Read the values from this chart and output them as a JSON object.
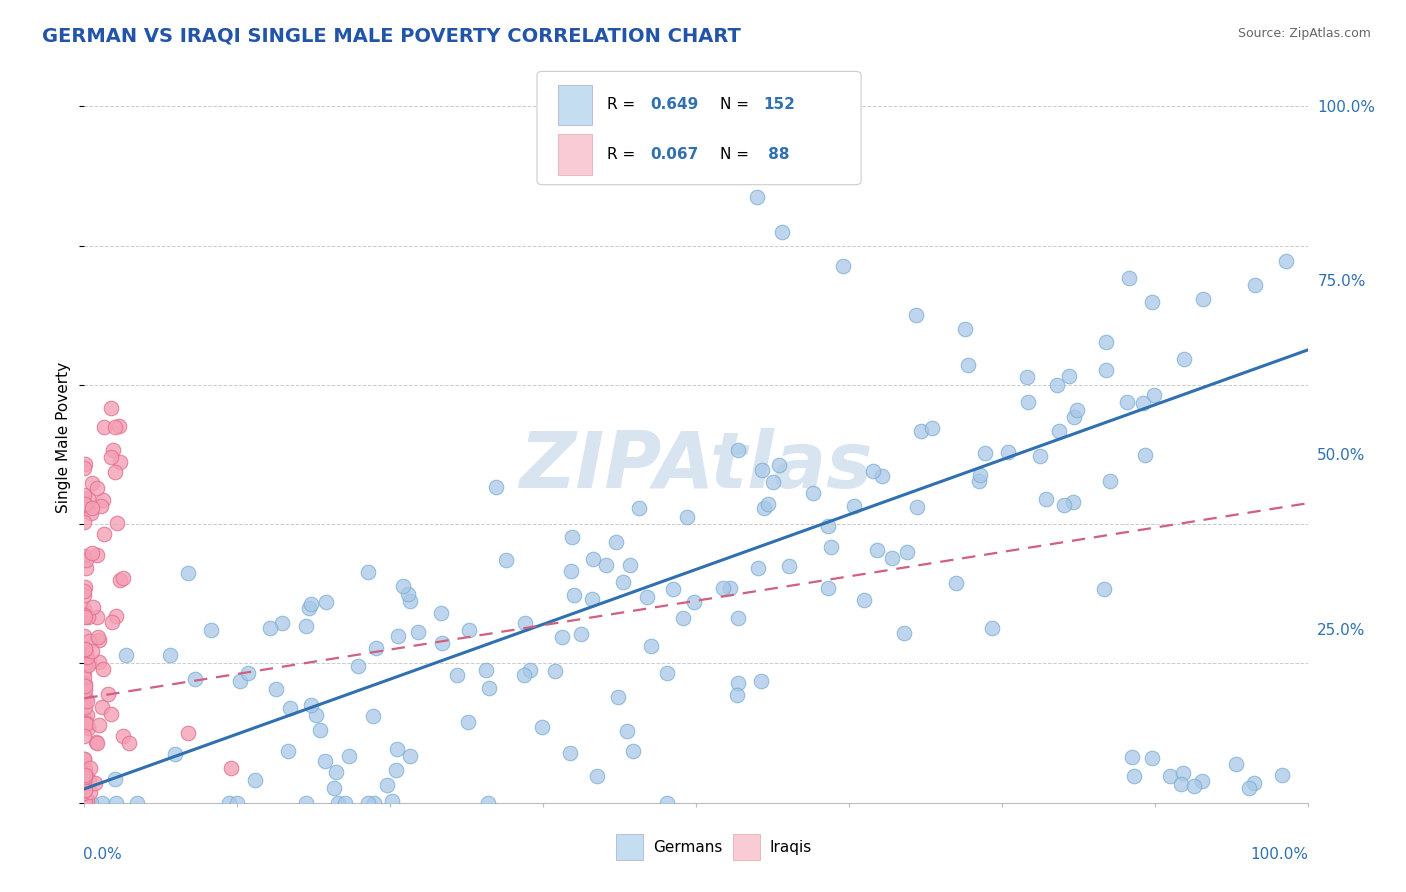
{
  "title": "GERMAN VS IRAQI SINGLE MALE POVERTY CORRELATION CHART",
  "source": "Source: ZipAtlas.com",
  "ylabel": "Single Male Poverty",
  "right_yticklabels": [
    "",
    "25.0%",
    "50.0%",
    "75.0%",
    "100.0%"
  ],
  "right_ytick_vals": [
    0.0,
    0.25,
    0.5,
    0.75,
    1.0
  ],
  "blue_scatter_color": "#a8c8e8",
  "blue_edge_color": "#7aaed0",
  "pink_scatter_color": "#f4a0b5",
  "pink_edge_color": "#e07090",
  "trend_blue": "#3070b0",
  "trend_pink": "#d06080",
  "watermark": "ZIPAtlas",
  "watermark_color": "#d8e4f0",
  "background": "#ffffff",
  "grid_color": "#cccccc",
  "title_color": "#2255aa",
  "axis_label_color": "#3070b0",
  "source_color": "#666666",
  "german_R": 0.649,
  "iraqi_R": 0.067,
  "german_N": 152,
  "iraqi_N": 88,
  "legend_blue_fill": "#c5ddf0",
  "legend_pink_fill": "#f9ccd5"
}
